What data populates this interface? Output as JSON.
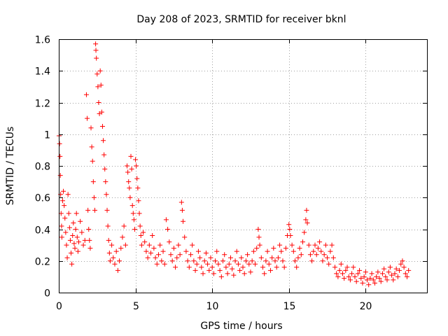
{
  "chart_data": {
    "type": "scatter",
    "title": "Day 208 of 2023, SRMTID for receiver bknl",
    "xlabel": "GPS time / hours",
    "ylabel": "SRMTID / TECUs",
    "xlim": [
      0,
      24
    ],
    "ylim": [
      0,
      1.6
    ],
    "xticks": [
      0,
      5,
      10,
      15,
      20
    ],
    "xtick_labels": [
      "0",
      "5",
      "10",
      "15",
      "20"
    ],
    "yticks": [
      0,
      0.2,
      0.4,
      0.6,
      0.8,
      1,
      1.2,
      1.4,
      1.6
    ],
    "ytick_labels": [
      "0",
      "0.2",
      "0.4",
      "0.6",
      "0.8",
      "1",
      "1.2",
      "1.4",
      "1.6"
    ],
    "grid": true,
    "marker": "+",
    "marker_color": "#ff0000",
    "series": [
      {
        "name": "SRMTID",
        "points": [
          [
            0.02,
            0.99
          ],
          [
            0.05,
            0.94
          ],
          [
            0.08,
            0.86
          ],
          [
            0.1,
            0.74
          ],
          [
            0.12,
            0.62
          ],
          [
            0.15,
            0.5
          ],
          [
            0.18,
            0.42
          ],
          [
            0.2,
            0.35
          ],
          [
            0.25,
            0.58
          ],
          [
            0.3,
            0.64
          ],
          [
            0.35,
            0.55
          ],
          [
            0.4,
            0.47
          ],
          [
            0.45,
            0.38
          ],
          [
            0.5,
            0.3
          ],
          [
            0.55,
            0.22
          ],
          [
            0.6,
            0.62
          ],
          [
            0.65,
            0.5
          ],
          [
            0.7,
            0.41
          ],
          [
            0.75,
            0.33
          ],
          [
            0.8,
            0.25
          ],
          [
            0.85,
            0.18
          ],
          [
            0.9,
            0.36
          ],
          [
            0.95,
            0.44
          ],
          [
            1.0,
            0.31
          ],
          [
            1.05,
            0.28
          ],
          [
            1.1,
            0.4
          ],
          [
            1.15,
            0.5
          ],
          [
            1.2,
            0.35
          ],
          [
            1.25,
            0.26
          ],
          [
            1.3,
            0.32
          ],
          [
            1.4,
            0.45
          ],
          [
            1.5,
            0.38
          ],
          [
            1.6,
            0.3
          ],
          [
            1.7,
            0.33
          ],
          [
            1.8,
            1.25
          ],
          [
            1.85,
            1.1
          ],
          [
            1.9,
            0.52
          ],
          [
            1.95,
            0.4
          ],
          [
            2.0,
            0.33
          ],
          [
            2.05,
            0.28
          ],
          [
            2.1,
            1.04
          ],
          [
            2.15,
            0.92
          ],
          [
            2.2,
            0.83
          ],
          [
            2.25,
            0.7
          ],
          [
            2.3,
            0.6
          ],
          [
            2.35,
            0.52
          ],
          [
            2.4,
            1.57
          ],
          [
            2.42,
            1.53
          ],
          [
            2.45,
            1.48
          ],
          [
            2.5,
            1.38
          ],
          [
            2.55,
            1.3
          ],
          [
            2.6,
            1.2
          ],
          [
            2.65,
            1.13
          ],
          [
            2.7,
            1.4
          ],
          [
            2.75,
            1.31
          ],
          [
            2.8,
            1.14
          ],
          [
            2.85,
            1.05
          ],
          [
            2.9,
            0.96
          ],
          [
            2.95,
            0.87
          ],
          [
            3.0,
            0.78
          ],
          [
            3.05,
            0.7
          ],
          [
            3.1,
            0.62
          ],
          [
            3.15,
            0.52
          ],
          [
            3.2,
            0.42
          ],
          [
            3.25,
            0.33
          ],
          [
            3.3,
            0.25
          ],
          [
            3.35,
            0.2
          ],
          [
            3.45,
            0.3
          ],
          [
            3.55,
            0.22
          ],
          [
            3.65,
            0.18
          ],
          [
            3.75,
            0.26
          ],
          [
            3.85,
            0.14
          ],
          [
            3.95,
            0.2
          ],
          [
            4.05,
            0.28
          ],
          [
            4.15,
            0.35
          ],
          [
            4.25,
            0.42
          ],
          [
            4.35,
            0.3
          ],
          [
            4.45,
            0.8
          ],
          [
            4.5,
            0.76
          ],
          [
            4.55,
            0.7
          ],
          [
            4.6,
            0.66
          ],
          [
            4.65,
            0.6
          ],
          [
            4.7,
            0.86
          ],
          [
            4.75,
            0.78
          ],
          [
            4.8,
            0.55
          ],
          [
            4.85,
            0.5
          ],
          [
            4.9,
            0.46
          ],
          [
            4.95,
            0.4
          ],
          [
            5.0,
            0.84
          ],
          [
            5.05,
            0.8
          ],
          [
            5.1,
            0.72
          ],
          [
            5.15,
            0.66
          ],
          [
            5.2,
            0.58
          ],
          [
            5.25,
            0.5
          ],
          [
            5.3,
            0.42
          ],
          [
            5.35,
            0.36
          ],
          [
            5.4,
            0.3
          ],
          [
            5.5,
            0.38
          ],
          [
            5.6,
            0.32
          ],
          [
            5.7,
            0.26
          ],
          [
            5.8,
            0.22
          ],
          [
            5.9,
            0.3
          ],
          [
            6.0,
            0.25
          ],
          [
            6.1,
            0.36
          ],
          [
            6.2,
            0.28
          ],
          [
            6.3,
            0.22
          ],
          [
            6.4,
            0.18
          ],
          [
            6.5,
            0.24
          ],
          [
            6.6,
            0.3
          ],
          [
            6.7,
            0.2
          ],
          [
            6.8,
            0.26
          ],
          [
            6.9,
            0.18
          ],
          [
            7.0,
            0.46
          ],
          [
            7.1,
            0.4
          ],
          [
            7.2,
            0.32
          ],
          [
            7.3,
            0.24
          ],
          [
            7.4,
            0.2
          ],
          [
            7.5,
            0.28
          ],
          [
            7.6,
            0.16
          ],
          [
            7.7,
            0.22
          ],
          [
            7.8,
            0.3
          ],
          [
            7.9,
            0.24
          ],
          [
            8.0,
            0.57
          ],
          [
            8.05,
            0.52
          ],
          [
            8.1,
            0.45
          ],
          [
            8.2,
            0.35
          ],
          [
            8.3,
            0.26
          ],
          [
            8.4,
            0.2
          ],
          [
            8.5,
            0.16
          ],
          [
            8.6,
            0.24
          ],
          [
            8.7,
            0.3
          ],
          [
            8.8,
            0.2
          ],
          [
            8.9,
            0.14
          ],
          [
            9.0,
            0.18
          ],
          [
            9.1,
            0.26
          ],
          [
            9.2,
            0.22
          ],
          [
            9.3,
            0.16
          ],
          [
            9.4,
            0.12
          ],
          [
            9.5,
            0.2
          ],
          [
            9.6,
            0.25
          ],
          [
            9.7,
            0.18
          ],
          [
            9.8,
            0.14
          ],
          [
            9.9,
            0.22
          ],
          [
            10.0,
            0.16
          ],
          [
            10.1,
            0.12
          ],
          [
            10.2,
            0.2
          ],
          [
            10.3,
            0.26
          ],
          [
            10.4,
            0.18
          ],
          [
            10.5,
            0.14
          ],
          [
            10.6,
            0.1
          ],
          [
            10.7,
            0.2
          ],
          [
            10.8,
            0.24
          ],
          [
            10.9,
            0.16
          ],
          [
            11.0,
            0.12
          ],
          [
            11.1,
            0.18
          ],
          [
            11.2,
            0.22
          ],
          [
            11.3,
            0.15
          ],
          [
            11.4,
            0.11
          ],
          [
            11.5,
            0.2
          ],
          [
            11.6,
            0.26
          ],
          [
            11.7,
            0.18
          ],
          [
            11.8,
            0.14
          ],
          [
            11.9,
            0.22
          ],
          [
            12.0,
            0.16
          ],
          [
            12.1,
            0.12
          ],
          [
            12.2,
            0.2
          ],
          [
            12.3,
            0.24
          ],
          [
            12.4,
            0.18
          ],
          [
            12.5,
            0.13
          ],
          [
            12.6,
            0.2
          ],
          [
            12.7,
            0.26
          ],
          [
            12.8,
            0.18
          ],
          [
            12.9,
            0.28
          ],
          [
            13.0,
            0.4
          ],
          [
            13.05,
            0.35
          ],
          [
            13.1,
            0.3
          ],
          [
            13.2,
            0.22
          ],
          [
            13.3,
            0.16
          ],
          [
            13.4,
            0.12
          ],
          [
            13.5,
            0.2
          ],
          [
            13.6,
            0.26
          ],
          [
            13.7,
            0.18
          ],
          [
            13.8,
            0.14
          ],
          [
            13.9,
            0.22
          ],
          [
            14.0,
            0.28
          ],
          [
            14.1,
            0.2
          ],
          [
            14.2,
            0.16
          ],
          [
            14.3,
            0.22
          ],
          [
            14.4,
            0.3
          ],
          [
            14.5,
            0.26
          ],
          [
            14.6,
            0.2
          ],
          [
            14.7,
            0.16
          ],
          [
            14.8,
            0.28
          ],
          [
            14.9,
            0.36
          ],
          [
            15.0,
            0.43
          ],
          [
            15.05,
            0.4
          ],
          [
            15.1,
            0.36
          ],
          [
            15.2,
            0.3
          ],
          [
            15.3,
            0.26
          ],
          [
            15.4,
            0.2
          ],
          [
            15.5,
            0.16
          ],
          [
            15.6,
            0.22
          ],
          [
            15.7,
            0.28
          ],
          [
            15.8,
            0.24
          ],
          [
            15.9,
            0.32
          ],
          [
            16.0,
            0.38
          ],
          [
            16.1,
            0.46
          ],
          [
            16.15,
            0.52
          ],
          [
            16.2,
            0.44
          ],
          [
            16.3,
            0.3
          ],
          [
            16.4,
            0.24
          ],
          [
            16.5,
            0.2
          ],
          [
            16.6,
            0.26
          ],
          [
            16.7,
            0.3
          ],
          [
            16.8,
            0.24
          ],
          [
            16.9,
            0.28
          ],
          [
            17.0,
            0.32
          ],
          [
            17.1,
            0.26
          ],
          [
            17.2,
            0.2
          ],
          [
            17.3,
            0.24
          ],
          [
            17.4,
            0.3
          ],
          [
            17.5,
            0.22
          ],
          [
            17.6,
            0.18
          ],
          [
            17.7,
            0.26
          ],
          [
            17.8,
            0.3
          ],
          [
            17.9,
            0.22
          ],
          [
            18.0,
            0.16
          ],
          [
            18.1,
            0.12
          ],
          [
            18.2,
            0.1
          ],
          [
            18.3,
            0.14
          ],
          [
            18.4,
            0.18
          ],
          [
            18.5,
            0.12
          ],
          [
            18.6,
            0.09
          ],
          [
            18.7,
            0.14
          ],
          [
            18.8,
            0.16
          ],
          [
            18.9,
            0.1
          ],
          [
            19.0,
            0.08
          ],
          [
            19.1,
            0.12
          ],
          [
            19.2,
            0.16
          ],
          [
            19.3,
            0.1
          ],
          [
            19.4,
            0.07
          ],
          [
            19.5,
            0.12
          ],
          [
            19.6,
            0.14
          ],
          [
            19.7,
            0.09
          ],
          [
            19.8,
            0.06
          ],
          [
            19.9,
            0.1
          ],
          [
            20.0,
            0.13
          ],
          [
            20.1,
            0.08
          ],
          [
            20.2,
            0.05
          ],
          [
            20.3,
            0.09
          ],
          [
            20.4,
            0.12
          ],
          [
            20.5,
            0.08
          ],
          [
            20.6,
            0.06
          ],
          [
            20.7,
            0.1
          ],
          [
            20.8,
            0.13
          ],
          [
            20.9,
            0.09
          ],
          [
            21.0,
            0.07
          ],
          [
            21.1,
            0.12
          ],
          [
            21.2,
            0.15
          ],
          [
            21.3,
            0.1
          ],
          [
            21.4,
            0.08
          ],
          [
            21.5,
            0.13
          ],
          [
            21.6,
            0.16
          ],
          [
            21.7,
            0.11
          ],
          [
            21.8,
            0.08
          ],
          [
            21.9,
            0.12
          ],
          [
            22.0,
            0.15
          ],
          [
            22.1,
            0.1
          ],
          [
            22.2,
            0.14
          ],
          [
            22.3,
            0.18
          ],
          [
            22.4,
            0.2
          ],
          [
            22.5,
            0.16
          ],
          [
            22.6,
            0.12
          ],
          [
            22.7,
            0.1
          ],
          [
            22.8,
            0.14
          ]
        ]
      }
    ]
  }
}
